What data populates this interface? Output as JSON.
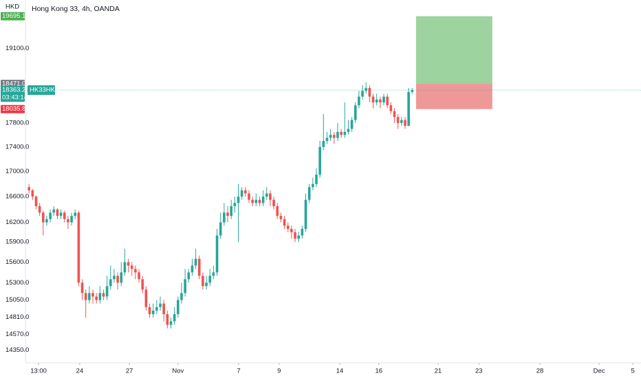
{
  "chart_data": {
    "type": "candlestick",
    "title": "Hong Kong 33, 4h, OANDA",
    "currency": "HKD",
    "symbol": "HK33HKD",
    "countdown": "03:43:14",
    "log_scale": true,
    "up_color": "#26a69a",
    "down_color": "#ef5350",
    "ylim": [
      14180,
      20000
    ],
    "yticks": [
      {
        "value": 14350,
        "label": "14350.0"
      },
      {
        "value": 14570,
        "label": "14570.0"
      },
      {
        "value": 14810,
        "label": "14810.0"
      },
      {
        "value": 15050,
        "label": "15050.0"
      },
      {
        "value": 15300,
        "label": "15300.0"
      },
      {
        "value": 15600,
        "label": "15600.0"
      },
      {
        "value": 15900,
        "label": "15900.0"
      },
      {
        "value": 16200,
        "label": "16200.0"
      },
      {
        "value": 16600,
        "label": "16600.0"
      },
      {
        "value": 17000,
        "label": "17000.0"
      },
      {
        "value": 17400,
        "label": "17400.0"
      },
      {
        "value": 17800,
        "label": "17800.0"
      },
      {
        "value": 19100,
        "label": "19100.0"
      }
    ],
    "xlim": [
      -1,
      172.5
    ],
    "xticks": [
      {
        "value": 2.7,
        "label": "13:00"
      },
      {
        "value": 14.3,
        "label": "24"
      },
      {
        "value": 28.3,
        "label": "27"
      },
      {
        "value": 42.0,
        "label": "Nov"
      },
      {
        "value": 59.1,
        "label": "7"
      },
      {
        "value": 70.5,
        "label": "9"
      },
      {
        "value": 87.6,
        "label": "14"
      },
      {
        "value": 98.6,
        "label": "16"
      },
      {
        "value": 115.3,
        "label": "21"
      },
      {
        "value": 126.8,
        "label": "23"
      },
      {
        "value": 144.0,
        "label": "28"
      },
      {
        "value": 160.7,
        "label": "Dec"
      },
      {
        "value": 170.2,
        "label": "5"
      }
    ],
    "open": [
      16750,
      16700,
      16600,
      16450,
      16350,
      16200,
      16250,
      16350,
      16400,
      16300,
      16350,
      16250,
      16200,
      16300,
      16350,
      15300,
      15150,
      15050,
      15150,
      15100,
      15050,
      15150,
      15100,
      15250,
      15350,
      15400,
      15300,
      15450,
      15600,
      15550,
      15500,
      15450,
      15350,
      15200,
      14950,
      14850,
      14900,
      14950,
      15000,
      14850,
      14700,
      14750,
      14850,
      15050,
      15150,
      15350,
      15450,
      15550,
      15650,
      15400,
      15250,
      15300,
      15400,
      15450,
      16000,
      16200,
      16350,
      16300,
      16450,
      16500,
      16600,
      16700,
      16650,
      16550,
      16500,
      16550,
      16500,
      16600,
      16650,
      16550,
      16450,
      16300,
      16250,
      16150,
      16100,
      16050,
      15950,
      16000,
      16100,
      16550,
      16750,
      16800,
      16950,
      17400,
      17500,
      17550,
      17600,
      17550,
      17650,
      17600,
      17650,
      17700,
      17850,
      18100,
      18250,
      18350,
      18400,
      18250,
      18150,
      18200,
      18150,
      18250,
      18100,
      18000,
      17900,
      17800,
      17850,
      17750,
      18330
    ],
    "high": [
      16800,
      16720,
      16620,
      16500,
      16380,
      16300,
      16400,
      16450,
      16420,
      16400,
      16380,
      16300,
      16350,
      16400,
      16380,
      15350,
      15200,
      15250,
      15200,
      15150,
      15250,
      15200,
      15400,
      15550,
      15500,
      15450,
      15600,
      15800,
      15650,
      15600,
      15550,
      15500,
      15400,
      15250,
      15000,
      15000,
      15050,
      15100,
      15050,
      14900,
      14800,
      14950,
      15100,
      15300,
      15500,
      15500,
      15650,
      15800,
      15700,
      15450,
      15400,
      15500,
      15550,
      16100,
      16350,
      16500,
      16450,
      16550,
      16600,
      16800,
      16750,
      16750,
      16700,
      16600,
      16650,
      16600,
      16700,
      16750,
      16700,
      16600,
      16500,
      16350,
      16300,
      16200,
      16150,
      16100,
      16050,
      16150,
      16650,
      16800,
      16900,
      17050,
      17500,
      17950,
      17650,
      17700,
      17650,
      17800,
      17700,
      18150,
      17850,
      17900,
      18150,
      18350,
      18450,
      18500,
      18450,
      18300,
      18300,
      18250,
      18300,
      18300,
      18150,
      18050,
      17950,
      17900,
      17900,
      18400,
      18400
    ],
    "low": [
      16650,
      16550,
      16400,
      16300,
      16000,
      16150,
      16200,
      16300,
      16250,
      16250,
      16200,
      16100,
      16150,
      16250,
      15250,
      15050,
      14800,
      15000,
      15000,
      15000,
      15000,
      15050,
      15050,
      15200,
      15300,
      15200,
      15250,
      15400,
      15450,
      15400,
      15350,
      15300,
      15150,
      14900,
      14800,
      14800,
      14850,
      14900,
      14750,
      14650,
      14650,
      14700,
      14800,
      15000,
      15100,
      15300,
      15400,
      15500,
      15350,
      15200,
      15200,
      15250,
      15350,
      15400,
      15950,
      16150,
      16200,
      16250,
      16350,
      15900,
      16550,
      16600,
      16500,
      16450,
      16450,
      16450,
      16450,
      16550,
      16450,
      16400,
      16250,
      16200,
      16100,
      16050,
      15950,
      15900,
      15900,
      15950,
      16050,
      16500,
      16700,
      16750,
      16900,
      17350,
      17450,
      17500,
      17450,
      17500,
      17550,
      17550,
      17600,
      17650,
      17800,
      18050,
      18200,
      18300,
      18150,
      18050,
      18100,
      18050,
      18100,
      18050,
      17950,
      17800,
      17700,
      17750,
      17700,
      17750,
      18300
    ],
    "close": [
      16700,
      16600,
      16450,
      16350,
      16200,
      16250,
      16350,
      16400,
      16300,
      16350,
      16250,
      16200,
      16300,
      16350,
      15300,
      15150,
      15050,
      15150,
      15100,
      15050,
      15150,
      15100,
      15250,
      15350,
      15400,
      15300,
      15450,
      15600,
      15550,
      15500,
      15450,
      15350,
      15200,
      14950,
      14850,
      14900,
      14950,
      15000,
      14850,
      14700,
      14750,
      14850,
      15050,
      15150,
      15350,
      15450,
      15550,
      15650,
      15400,
      15250,
      15300,
      15400,
      15450,
      16000,
      16200,
      16350,
      16300,
      16450,
      16500,
      16600,
      16700,
      16650,
      16550,
      16500,
      16550,
      16500,
      16600,
      16650,
      16550,
      16450,
      16300,
      16250,
      16150,
      16100,
      16050,
      15950,
      16000,
      16100,
      16550,
      16750,
      16800,
      16950,
      17400,
      17500,
      17550,
      17600,
      17550,
      17650,
      17600,
      17650,
      17700,
      17850,
      18100,
      18250,
      18350,
      18400,
      18250,
      18150,
      18200,
      18150,
      18250,
      18100,
      18000,
      17900,
      17800,
      17850,
      17750,
      18330,
      18363.2
    ],
    "current_price": 18363.2,
    "position": {
      "x_start": 109.1,
      "x_end": 130.6,
      "target": {
        "value": 19695.1,
        "label": "19695.1"
      },
      "entry": {
        "value": 18471.0,
        "label": "18471.0"
      },
      "stop": {
        "value": 18035.8,
        "label": "18035.8"
      }
    }
  }
}
